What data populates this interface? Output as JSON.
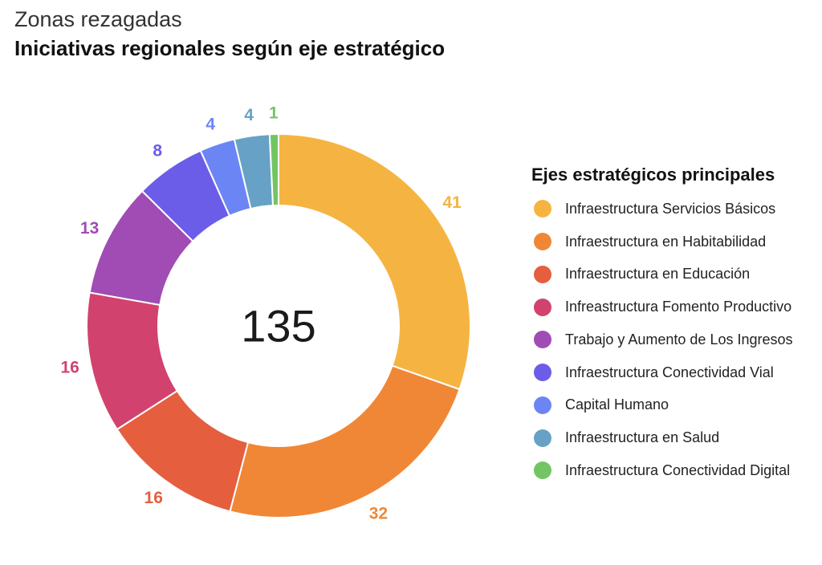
{
  "chart_data": {
    "type": "pie",
    "variant": "donut",
    "title": "Zonas rezagadas",
    "subtitle": "Iniciativas regionales según eje estratégico",
    "center_label": "135",
    "legend_title": "Ejes estratégicos principales",
    "legend_position": "right",
    "categories": [
      "Infraestructura Servicios Básicos",
      "Infraestructura en Habitabilidad",
      "Infraestructura en Educación",
      "Infreastructura Fomento Productivo",
      "Trabajo y Aumento de Los Ingresos",
      "Infraestructura Conectividad Vial",
      "Capital Humano",
      "Infraestructura en Salud",
      "Infraestructura Conectividad Digital"
    ],
    "values": [
      41,
      32,
      16,
      16,
      13,
      8,
      4,
      4,
      1
    ],
    "colors": [
      "#F5B441",
      "#F08736",
      "#E55E3E",
      "#D2426E",
      "#A04CB4",
      "#6B5DE8",
      "#6C85F5",
      "#67A2C6",
      "#73C564"
    ]
  }
}
